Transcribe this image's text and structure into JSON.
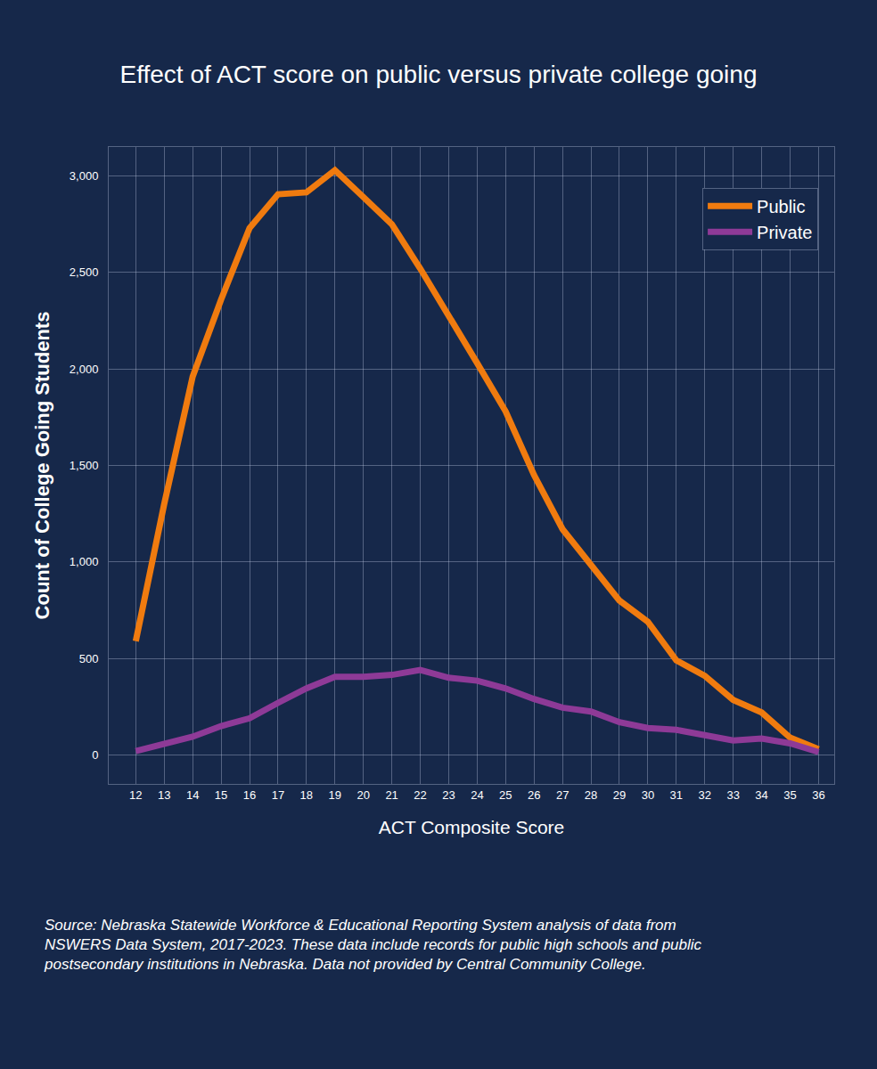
{
  "chart_data": {
    "type": "line",
    "title": "Effect of ACT score on public versus private college going",
    "x_label": "ACT Composite Score",
    "y_label": "Count of College Going Students",
    "x": [
      12,
      13,
      14,
      15,
      16,
      17,
      18,
      19,
      20,
      21,
      22,
      23,
      24,
      25,
      26,
      27,
      28,
      29,
      30,
      31,
      32,
      33,
      34,
      35,
      36
    ],
    "series": [
      {
        "name": "Public",
        "color": "#f07b0f",
        "values": [
          590,
          1300,
          1960,
          2360,
          2730,
          2905,
          2915,
          3030,
          2890,
          2750,
          2520,
          2280,
          2030,
          1780,
          1450,
          1170,
          990,
          800,
          690,
          490,
          410,
          285,
          220,
          90,
          30
        ]
      },
      {
        "name": "Private",
        "color": "#8e3a97",
        "values": [
          20,
          60,
          95,
          150,
          190,
          270,
          345,
          405,
          405,
          415,
          440,
          400,
          385,
          345,
          290,
          245,
          225,
          170,
          140,
          130,
          100,
          75,
          85,
          60,
          15
        ]
      }
    ],
    "xlim": [
      11.05,
      36.55
    ],
    "xticks": [
      12,
      13,
      14,
      15,
      16,
      17,
      18,
      19,
      20,
      21,
      22,
      23,
      24,
      25,
      26,
      27,
      28,
      29,
      30,
      31,
      32,
      33,
      34,
      35,
      36
    ],
    "ylim": [
      -150,
      3150
    ],
    "yticks": [
      0,
      500,
      {
        "value": 1000,
        "label": "1,000"
      },
      {
        "value": 1500,
        "label": "1,500"
      },
      {
        "value": 2000,
        "label": "2,000"
      },
      {
        "value": 2500,
        "label": "2,500"
      },
      {
        "value": 3000,
        "label": "3,000"
      }
    ],
    "grid": true,
    "legend": "top right",
    "annotations": [
      "Source: Nebraska Statewide Workforce & Educational Reporting System analysis of data from NSWERS Data System, 2017-2023. These data include records for public high schools and public postsecondary institutions in Nebraska. Data not provided by Central Community College."
    ]
  }
}
